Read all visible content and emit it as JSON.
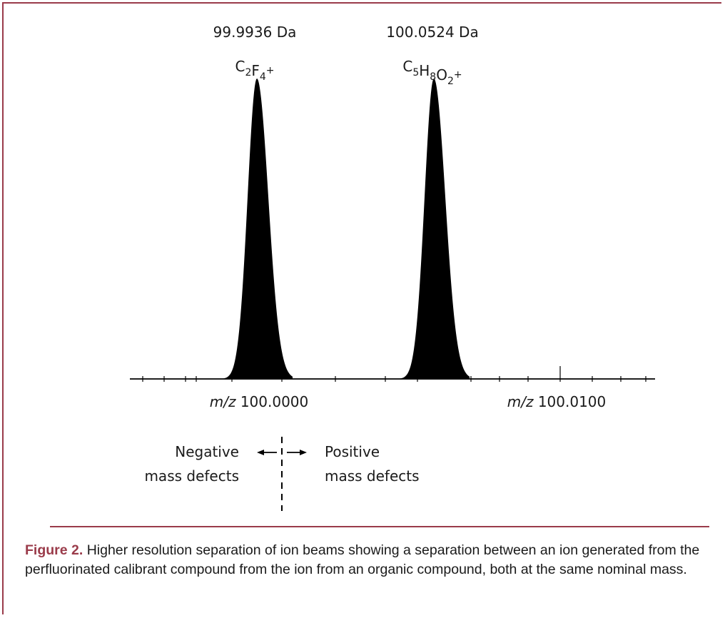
{
  "chart_data": {
    "type": "line",
    "xlim": [
      99.9898,
      100.0147
    ],
    "peaks": [
      {
        "mass": 99.9936,
        "mass_label": "99.9936 Da",
        "formula": [
          {
            "t": "C",
            "s": "2",
            "p": ""
          },
          {
            "t": "F",
            "s": "4",
            "p": "+"
          }
        ]
      },
      {
        "mass": 100.0524,
        "mass_label": "100.0524 Da",
        "formula": [
          {
            "t": "C",
            "s": "5",
            "p": ""
          },
          {
            "t": "H",
            "s": "8",
            "p": ""
          },
          {
            "t": "O",
            "s": "2",
            "p": "+"
          }
        ]
      }
    ],
    "ticks": [
      {
        "prefix": "m/z",
        "value": "100.0000"
      },
      {
        "prefix": "m/z",
        "value": "100.0100"
      }
    ],
    "defects": {
      "negative": [
        "Negative",
        "mass defects"
      ],
      "positive": [
        "Positive",
        "mass defects"
      ]
    }
  },
  "caption": {
    "label": "Figure 2.",
    "text": " Higher resolution separation of ion beams showing a separation between an ion generated from the perfluorinated calibrant compound from the ion from an organic compound, both at the same nominal mass."
  },
  "colors": {
    "accent": "#9a3b4a",
    "ink": "#000000"
  }
}
